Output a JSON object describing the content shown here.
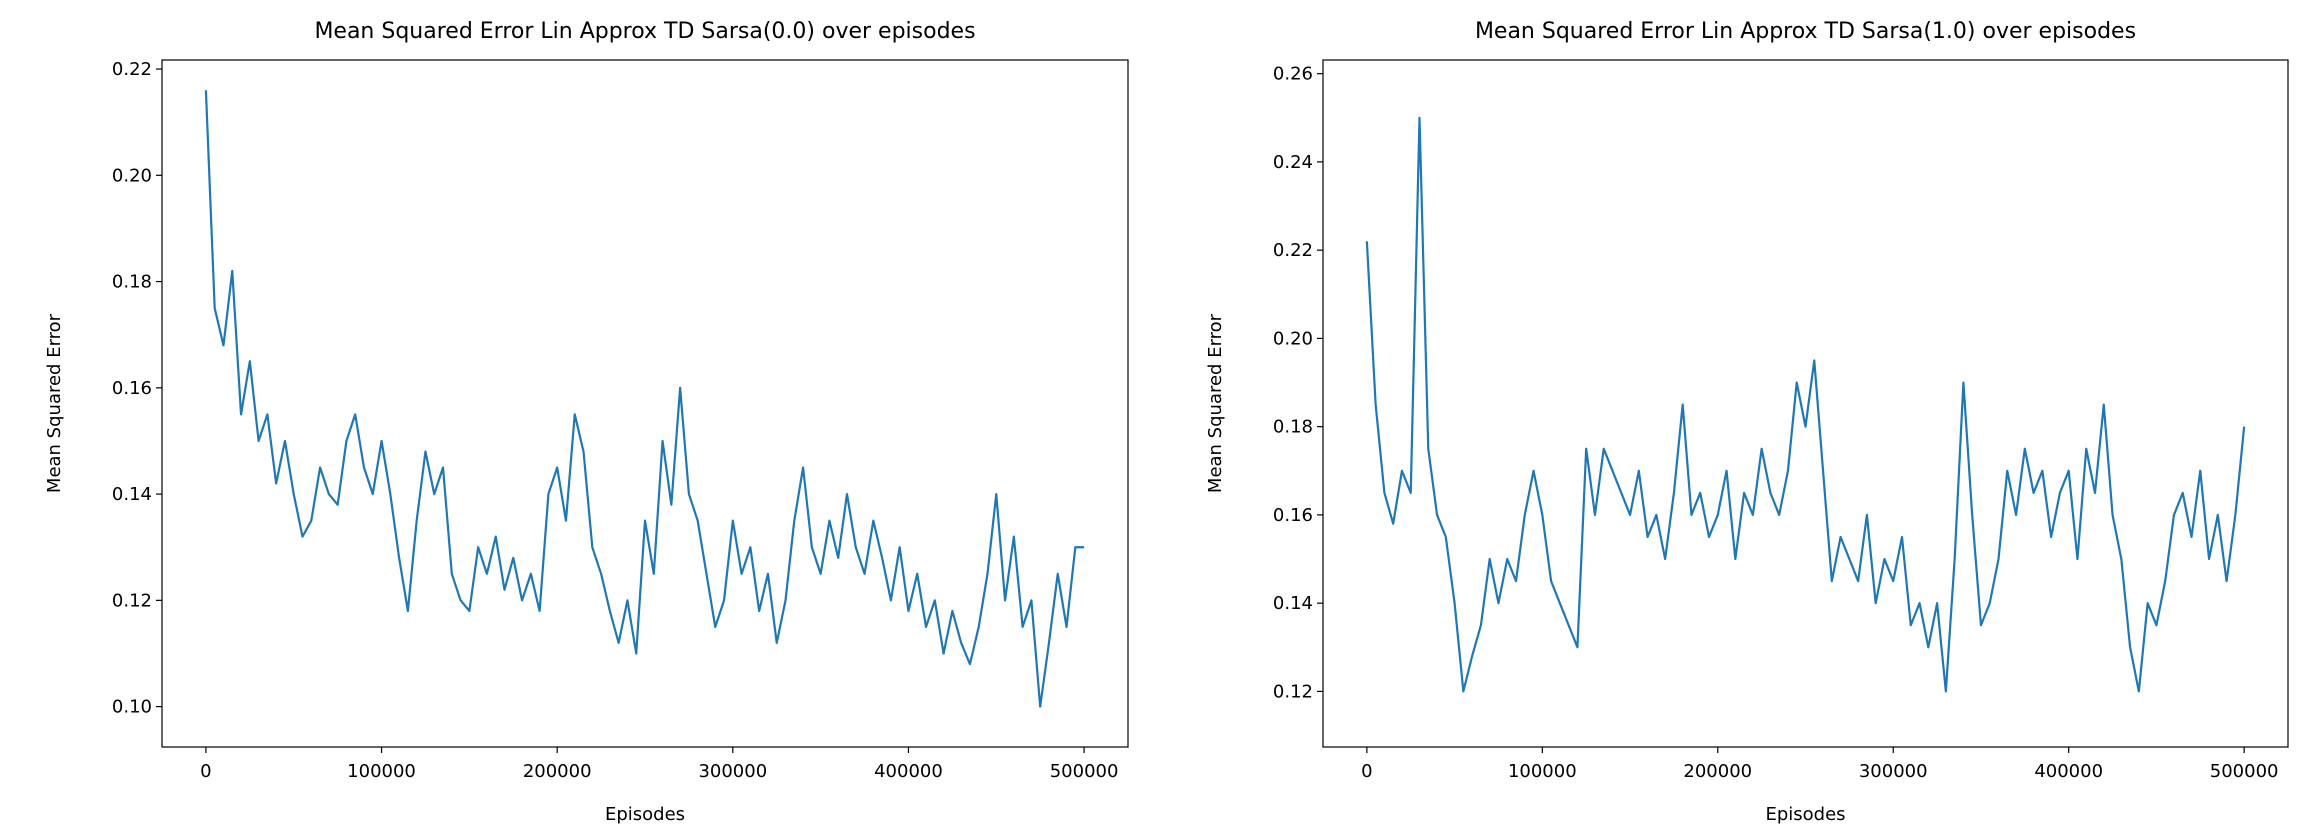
{
  "chart_data": [
    {
      "type": "line",
      "title": "Mean Squared Error Lin Approx TD Sarsa(0.0) over episodes",
      "xlabel": "Episodes",
      "ylabel": "Mean Squared Error",
      "color": "#1f77b4",
      "x": [
        0,
        5000,
        10000,
        15000,
        20000,
        25000,
        30000,
        35000,
        40000,
        45000,
        50000,
        55000,
        60000,
        65000,
        70000,
        75000,
        80000,
        85000,
        90000,
        95000,
        100000,
        105000,
        110000,
        115000,
        120000,
        125000,
        130000,
        135000,
        140000,
        145000,
        150000,
        155000,
        160000,
        165000,
        170000,
        175000,
        180000,
        185000,
        190000,
        195000,
        200000,
        205000,
        210000,
        215000,
        220000,
        225000,
        230000,
        235000,
        240000,
        245000,
        250000,
        255000,
        260000,
        265000,
        270000,
        275000,
        280000,
        285000,
        290000,
        295000,
        300000,
        305000,
        310000,
        315000,
        320000,
        325000,
        330000,
        335000,
        340000,
        345000,
        350000,
        355000,
        360000,
        365000,
        370000,
        375000,
        380000,
        385000,
        390000,
        395000,
        400000,
        405000,
        410000,
        415000,
        420000,
        425000,
        430000,
        435000,
        440000,
        445000,
        450000,
        455000,
        460000,
        465000,
        470000,
        475000,
        480000,
        485000,
        490000,
        495000,
        500000
      ],
      "values": [
        0.216,
        0.175,
        0.168,
        0.182,
        0.155,
        0.165,
        0.15,
        0.155,
        0.142,
        0.15,
        0.14,
        0.132,
        0.135,
        0.145,
        0.14,
        0.138,
        0.15,
        0.155,
        0.145,
        0.14,
        0.15,
        0.14,
        0.128,
        0.118,
        0.135,
        0.148,
        0.14,
        0.145,
        0.125,
        0.12,
        0.118,
        0.13,
        0.125,
        0.132,
        0.122,
        0.128,
        0.12,
        0.125,
        0.118,
        0.14,
        0.145,
        0.135,
        0.155,
        0.148,
        0.13,
        0.125,
        0.118,
        0.112,
        0.12,
        0.11,
        0.135,
        0.125,
        0.15,
        0.138,
        0.16,
        0.14,
        0.135,
        0.125,
        0.115,
        0.12,
        0.135,
        0.125,
        0.13,
        0.118,
        0.125,
        0.112,
        0.12,
        0.135,
        0.145,
        0.13,
        0.125,
        0.135,
        0.128,
        0.14,
        0.13,
        0.125,
        0.135,
        0.128,
        0.12,
        0.13,
        0.118,
        0.125,
        0.115,
        0.12,
        0.11,
        0.118,
        0.112,
        0.108,
        0.115,
        0.125,
        0.14,
        0.12,
        0.132,
        0.115,
        0.12,
        0.1,
        0.112,
        0.125,
        0.115,
        0.13,
        0.13
      ],
      "xlim": [
        -25000,
        525000
      ],
      "ylim": [
        0.0924,
        0.2217
      ],
      "xticks": [
        0,
        100000,
        200000,
        300000,
        400000,
        500000
      ],
      "yticks": [
        {
          "value": 0.1,
          "label": "0.10"
        },
        0.12,
        0.14,
        0.16,
        0.18,
        {
          "value": 0.2,
          "label": "0.20"
        },
        0.22
      ]
    },
    {
      "type": "line",
      "title": "Mean Squared Error Lin Approx TD Sarsa(1.0) over episodes",
      "xlabel": "Episodes",
      "ylabel": "Mean Squared Error",
      "color": "#1f77b4",
      "x": [
        0,
        5000,
        10000,
        15000,
        20000,
        25000,
        30000,
        35000,
        40000,
        45000,
        50000,
        55000,
        60000,
        65000,
        70000,
        75000,
        80000,
        85000,
        90000,
        95000,
        100000,
        105000,
        110000,
        115000,
        120000,
        125000,
        130000,
        135000,
        140000,
        145000,
        150000,
        155000,
        160000,
        165000,
        170000,
        175000,
        180000,
        185000,
        190000,
        195000,
        200000,
        205000,
        210000,
        215000,
        220000,
        225000,
        230000,
        235000,
        240000,
        245000,
        250000,
        255000,
        260000,
        265000,
        270000,
        275000,
        280000,
        285000,
        290000,
        295000,
        300000,
        305000,
        310000,
        315000,
        320000,
        325000,
        330000,
        335000,
        340000,
        345000,
        350000,
        355000,
        360000,
        365000,
        370000,
        375000,
        380000,
        385000,
        390000,
        395000,
        400000,
        405000,
        410000,
        415000,
        420000,
        425000,
        430000,
        435000,
        440000,
        445000,
        450000,
        455000,
        460000,
        465000,
        470000,
        475000,
        480000,
        485000,
        490000,
        495000,
        500000
      ],
      "values": [
        0.222,
        0.185,
        0.165,
        0.158,
        0.17,
        0.165,
        0.25,
        0.175,
        0.16,
        0.155,
        0.14,
        0.12,
        0.128,
        0.135,
        0.15,
        0.14,
        0.15,
        0.145,
        0.16,
        0.17,
        0.16,
        0.145,
        0.14,
        0.135,
        0.13,
        0.175,
        0.16,
        0.175,
        0.17,
        0.165,
        0.16,
        0.17,
        0.155,
        0.16,
        0.15,
        0.165,
        0.185,
        0.16,
        0.165,
        0.155,
        0.16,
        0.17,
        0.15,
        0.165,
        0.16,
        0.175,
        0.165,
        0.16,
        0.17,
        0.19,
        0.18,
        0.195,
        0.17,
        0.145,
        0.155,
        0.15,
        0.145,
        0.16,
        0.14,
        0.15,
        0.145,
        0.155,
        0.135,
        0.14,
        0.13,
        0.14,
        0.12,
        0.15,
        0.19,
        0.16,
        0.135,
        0.14,
        0.15,
        0.17,
        0.16,
        0.175,
        0.165,
        0.17,
        0.155,
        0.165,
        0.17,
        0.15,
        0.175,
        0.165,
        0.185,
        0.16,
        0.15,
        0.13,
        0.12,
        0.14,
        0.135,
        0.145,
        0.16,
        0.165,
        0.155,
        0.17,
        0.15,
        0.16,
        0.145,
        0.16,
        0.18
      ],
      "xlim": [
        -25000,
        525000
      ],
      "ylim": [
        0.1074,
        0.2631
      ],
      "xticks": [
        0,
        100000,
        200000,
        300000,
        400000,
        500000
      ],
      "yticks": [
        0.12,
        0.14,
        0.16,
        0.18,
        {
          "value": 0.2,
          "label": "0.20"
        },
        0.22,
        0.24,
        0.26
      ]
    }
  ]
}
